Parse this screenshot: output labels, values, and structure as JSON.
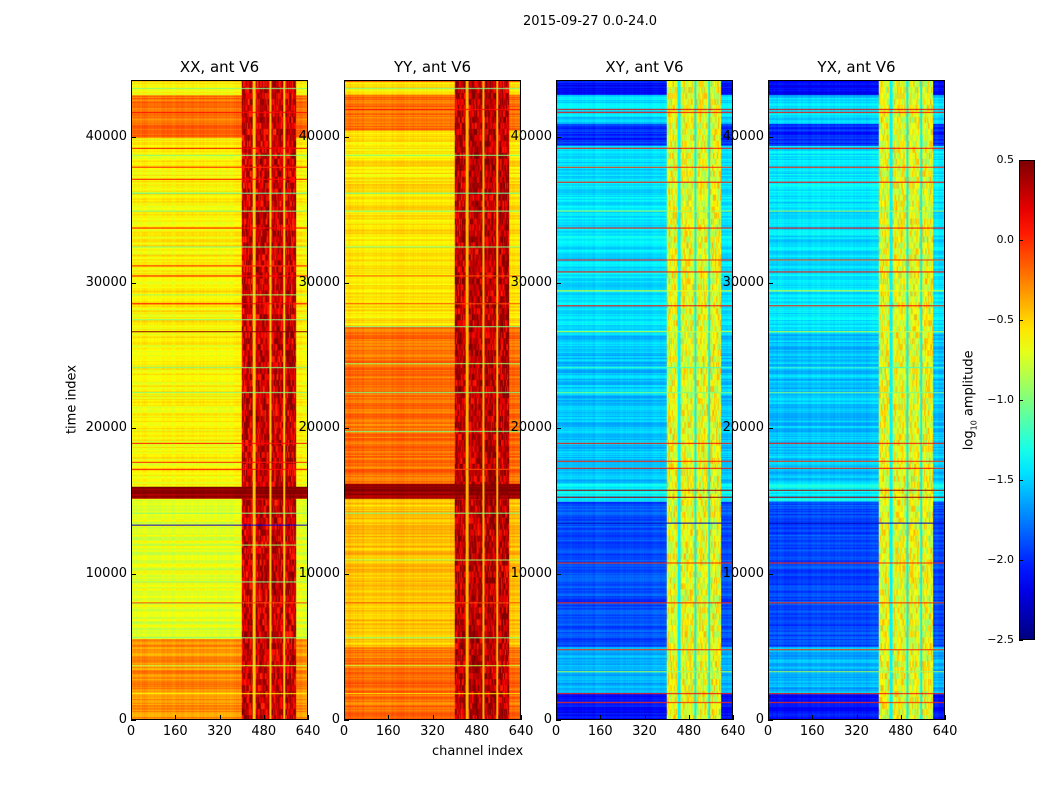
{
  "chart_data": {
    "type": "heatmap",
    "title": "2015-09-27 0.0-24.0",
    "xlabel": "channel index",
    "ylabel": "time index",
    "xlim": [
      0,
      640
    ],
    "ylim": [
      0,
      43900
    ],
    "xticks": [
      "0",
      "160",
      "320",
      "480",
      "640"
    ],
    "yticks": [
      "0",
      "10000",
      "20000",
      "30000",
      "40000"
    ],
    "colormap": "jet",
    "colorbar": {
      "label_prefix": "log",
      "label_sub": "10",
      "label_suffix": " amplitude",
      "range": [
        -2.5,
        0.5
      ],
      "ticks": [
        "0.5",
        "0.0",
        "−0.5",
        "−1.0",
        "−1.5",
        "−2.0",
        "−2.5"
      ],
      "tick_values": [
        0.5,
        0.0,
        -0.5,
        -1.0,
        -1.5,
        -2.0,
        -2.5
      ]
    },
    "panels": [
      {
        "title": "XX, ant V6",
        "time_blocks": [
          [
            0,
            5500,
            -0.3
          ],
          [
            5500,
            15200,
            -0.7
          ],
          [
            15200,
            16000,
            0.45
          ],
          [
            16000,
            26500,
            -0.62
          ],
          [
            26500,
            40000,
            -0.6
          ],
          [
            40000,
            43000,
            -0.2
          ],
          [
            43000,
            43900,
            -0.6
          ]
        ],
        "rfi_channels": [
          400,
          600
        ],
        "rfi_value": 0.15,
        "rfi_gaps": [
          445,
          505,
          555
        ],
        "flag_rows": [
          [
            1800,
            -0.6
          ],
          [
            3700,
            -0.8
          ],
          [
            5600,
            -1.0
          ],
          [
            8000,
            -0.1
          ],
          [
            9500,
            -1.0
          ],
          [
            12000,
            -0.9
          ],
          [
            13400,
            -2.2
          ],
          [
            14200,
            -1.0
          ],
          [
            17200,
            0.1
          ],
          [
            17700,
            0.05
          ],
          [
            19000,
            0.1
          ],
          [
            22500,
            -1.0
          ],
          [
            24200,
            -1.0
          ],
          [
            26700,
            0.45
          ],
          [
            27500,
            -1.0
          ],
          [
            28600,
            0.1
          ],
          [
            29200,
            -0.9
          ],
          [
            30500,
            0.1
          ],
          [
            31200,
            0.0
          ],
          [
            32500,
            -1.0
          ],
          [
            33800,
            0.1
          ],
          [
            35000,
            -1.0
          ],
          [
            36200,
            -1.1
          ],
          [
            37200,
            0.1
          ],
          [
            38000,
            0.0
          ],
          [
            38800,
            -1.0
          ],
          [
            39300,
            0.15
          ],
          [
            41800,
            0.1
          ],
          [
            43400,
            -1.0
          ]
        ]
      },
      {
        "title": "YY, ant V6",
        "time_blocks": [
          [
            0,
            5000,
            -0.2
          ],
          [
            5000,
            15200,
            -0.45
          ],
          [
            15200,
            16200,
            0.45
          ],
          [
            16200,
            27000,
            -0.2
          ],
          [
            27000,
            40500,
            -0.55
          ],
          [
            40500,
            43000,
            -0.2
          ],
          [
            43000,
            43900,
            -0.55
          ]
        ],
        "rfi_channels": [
          400,
          600
        ],
        "rfi_value": 0.2,
        "rfi_gaps": [
          445,
          505,
          555
        ],
        "flag_rows": [
          [
            1800,
            -0.6
          ],
          [
            3700,
            -0.8
          ],
          [
            5600,
            -1.0
          ],
          [
            8000,
            -0.1
          ],
          [
            11000,
            -0.9
          ],
          [
            14200,
            -1.0
          ],
          [
            17200,
            -0.1
          ],
          [
            19800,
            -1.0
          ],
          [
            22500,
            -1.0
          ],
          [
            24500,
            -0.9
          ],
          [
            27000,
            -1.0
          ],
          [
            28600,
            -0.1
          ],
          [
            30500,
            -0.1
          ],
          [
            32500,
            -1.0
          ],
          [
            35000,
            -1.0
          ],
          [
            36200,
            -1.1
          ],
          [
            38800,
            -1.0
          ],
          [
            42000,
            0.1
          ],
          [
            43400,
            -1.0
          ]
        ]
      },
      {
        "title": "XY, ant V6",
        "time_blocks": [
          [
            0,
            1800,
            -2.1
          ],
          [
            1800,
            5000,
            -1.6
          ],
          [
            5000,
            15000,
            -1.9
          ],
          [
            15000,
            16200,
            -1.4
          ],
          [
            16200,
            26500,
            -1.55
          ],
          [
            26500,
            39500,
            -1.45
          ],
          [
            39500,
            41000,
            -2.0
          ],
          [
            41000,
            43000,
            -1.5
          ],
          [
            43000,
            43900,
            -2.1
          ]
        ],
        "rfi_channels": [
          400,
          600
        ],
        "rfi_value": -0.8,
        "rfi_gaps": [
          445,
          505,
          555
        ],
        "flag_rows": [
          [
            1200,
            0.0
          ],
          [
            1800,
            0.1
          ],
          [
            3300,
            -0.9
          ],
          [
            4800,
            0.0
          ],
          [
            8000,
            0.0
          ],
          [
            10800,
            0.0
          ],
          [
            13500,
            -2.3
          ],
          [
            15300,
            0.4
          ],
          [
            15800,
            0.4
          ],
          [
            17300,
            0.1
          ],
          [
            17800,
            0.0
          ],
          [
            19000,
            0.1
          ],
          [
            22500,
            -1.0
          ],
          [
            24200,
            -1.2
          ],
          [
            26700,
            -0.8
          ],
          [
            28500,
            0.1
          ],
          [
            29500,
            -0.7
          ],
          [
            30800,
            0.1
          ],
          [
            31600,
            0.0
          ],
          [
            33800,
            0.1
          ],
          [
            35000,
            -0.9
          ],
          [
            37000,
            0.1
          ],
          [
            38000,
            0.0
          ],
          [
            39300,
            0.1
          ],
          [
            41800,
            0.1
          ],
          [
            42000,
            0.2
          ]
        ]
      },
      {
        "title": "YX, ant V6",
        "time_blocks": [
          [
            0,
            1800,
            -2.1
          ],
          [
            1800,
            5000,
            -1.6
          ],
          [
            5000,
            15000,
            -1.9
          ],
          [
            15000,
            16200,
            -1.4
          ],
          [
            16200,
            26500,
            -1.55
          ],
          [
            26500,
            39500,
            -1.45
          ],
          [
            39500,
            41000,
            -2.0
          ],
          [
            41000,
            43000,
            -1.5
          ],
          [
            43000,
            43900,
            -2.1
          ]
        ],
        "rfi_channels": [
          400,
          600
        ],
        "rfi_value": -0.8,
        "rfi_gaps": [
          445,
          505,
          555
        ],
        "flag_rows": [
          [
            1200,
            0.0
          ],
          [
            1800,
            0.1
          ],
          [
            3300,
            -0.9
          ],
          [
            4800,
            0.0
          ],
          [
            8000,
            0.0
          ],
          [
            10800,
            0.0
          ],
          [
            13500,
            -2.3
          ],
          [
            15300,
            0.4
          ],
          [
            15800,
            0.4
          ],
          [
            17300,
            0.1
          ],
          [
            17800,
            0.0
          ],
          [
            19000,
            0.1
          ],
          [
            22500,
            -1.0
          ],
          [
            24200,
            -1.2
          ],
          [
            26700,
            -0.8
          ],
          [
            28500,
            0.1
          ],
          [
            29500,
            -0.7
          ],
          [
            30800,
            0.1
          ],
          [
            31600,
            0.0
          ],
          [
            33800,
            0.1
          ],
          [
            35000,
            -0.9
          ],
          [
            37000,
            0.1
          ],
          [
            38000,
            0.0
          ],
          [
            39300,
            0.1
          ],
          [
            41800,
            0.1
          ],
          [
            42000,
            0.2
          ]
        ]
      }
    ]
  }
}
